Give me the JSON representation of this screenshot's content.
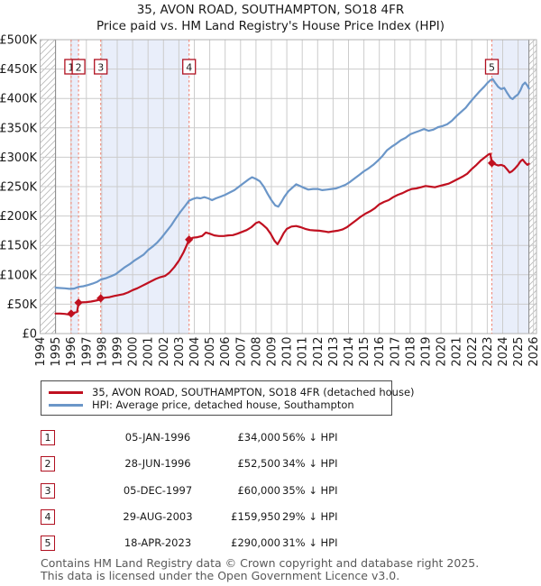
{
  "title": {
    "line1": "35, AVON ROAD, SOUTHAMPTON, SO18 4FR",
    "line2": "Price paid vs. HM Land Registry's House Price Index (HPI)"
  },
  "colors": {
    "price_line": "#c01020",
    "hpi_line": "#6b96c8",
    "sale_dash": "#f08878",
    "marker_box_border": "#b01020",
    "ownership_band": "#e9eefa",
    "grid": "#cccccc",
    "plot_border": "#b0b0b0",
    "data_edge": "#888888",
    "hatch": "#bbbbbb"
  },
  "chart_data": {
    "type": "line",
    "title": "35, AVON ROAD, SOUTHAMPTON, SO18 4FR — Price paid vs. HPI",
    "xlabel": "",
    "ylabel": "",
    "x_ticks": [
      1994,
      1995,
      1996,
      1997,
      1998,
      1999,
      2000,
      2001,
      2002,
      2003,
      2004,
      2005,
      2006,
      2007,
      2008,
      2009,
      2010,
      2011,
      2012,
      2013,
      2014,
      2015,
      2016,
      2017,
      2018,
      2019,
      2020,
      2021,
      2022,
      2023,
      2024,
      2025,
      2026
    ],
    "y_tick_labels": [
      "£0",
      "£50K",
      "£100K",
      "£150K",
      "£200K",
      "£250K",
      "£300K",
      "£350K",
      "£400K",
      "£450K",
      "£500K"
    ],
    "y_tick_values_k": [
      0,
      50,
      100,
      150,
      200,
      250,
      300,
      350,
      400,
      450,
      500
    ],
    "x_range": [
      1993.97,
      2026.2
    ],
    "y_range_k": [
      0,
      500
    ],
    "grid": true,
    "legend_position": "below",
    "no_data_hatch_years": [
      [
        1993.97,
        1995.0
      ],
      [
        2025.7,
        2026.2
      ]
    ],
    "ownership_bands_years": [
      [
        1996.01,
        1996.49
      ],
      [
        1997.93,
        2003.66
      ],
      [
        2023.3,
        2025.7
      ]
    ],
    "series": [
      {
        "name": "HPI: Average price, detached house, Southampton",
        "points": [
          [
            1995.0,
            78
          ],
          [
            1995.3,
            77.5
          ],
          [
            1995.6,
            77
          ],
          [
            1995.9,
            76
          ],
          [
            1996.2,
            76.5
          ],
          [
            1996.5,
            79.5
          ],
          [
            1996.8,
            80.5
          ],
          [
            1997.1,
            82.5
          ],
          [
            1997.4,
            85
          ],
          [
            1997.7,
            88
          ],
          [
            1997.95,
            92
          ],
          [
            1998.3,
            94.5
          ],
          [
            1998.6,
            97.5
          ],
          [
            1998.9,
            101
          ],
          [
            1999.2,
            107
          ],
          [
            1999.5,
            113
          ],
          [
            1999.8,
            118
          ],
          [
            2000.1,
            124
          ],
          [
            2000.4,
            129
          ],
          [
            2000.7,
            134
          ],
          [
            2001.0,
            142
          ],
          [
            2001.3,
            148
          ],
          [
            2001.6,
            155
          ],
          [
            2001.9,
            164
          ],
          [
            2002.2,
            174
          ],
          [
            2002.5,
            184
          ],
          [
            2002.8,
            196
          ],
          [
            2003.1,
            207
          ],
          [
            2003.4,
            217
          ],
          [
            2003.66,
            226
          ],
          [
            2003.9,
            229
          ],
          [
            2004.15,
            231
          ],
          [
            2004.4,
            230
          ],
          [
            2004.65,
            232
          ],
          [
            2004.9,
            230
          ],
          [
            2005.15,
            227
          ],
          [
            2005.4,
            230
          ],
          [
            2005.7,
            233
          ],
          [
            2006.0,
            236
          ],
          [
            2006.3,
            240
          ],
          [
            2006.6,
            244
          ],
          [
            2006.9,
            250
          ],
          [
            2007.2,
            256
          ],
          [
            2007.5,
            262
          ],
          [
            2007.75,
            266
          ],
          [
            2008.0,
            263
          ],
          [
            2008.25,
            259
          ],
          [
            2008.5,
            250
          ],
          [
            2008.75,
            238
          ],
          [
            2009.0,
            227
          ],
          [
            2009.25,
            218
          ],
          [
            2009.45,
            216
          ],
          [
            2009.65,
            224
          ],
          [
            2009.85,
            233
          ],
          [
            2010.1,
            242
          ],
          [
            2010.35,
            248
          ],
          [
            2010.6,
            254
          ],
          [
            2010.85,
            251
          ],
          [
            2011.1,
            248
          ],
          [
            2011.4,
            245
          ],
          [
            2011.7,
            246
          ],
          [
            2012.0,
            246
          ],
          [
            2012.3,
            244
          ],
          [
            2012.6,
            245
          ],
          [
            2012.9,
            246
          ],
          [
            2013.2,
            247
          ],
          [
            2013.5,
            250
          ],
          [
            2013.8,
            253
          ],
          [
            2014.1,
            258
          ],
          [
            2014.4,
            264
          ],
          [
            2014.7,
            270
          ],
          [
            2015.0,
            276
          ],
          [
            2015.3,
            281
          ],
          [
            2015.6,
            287
          ],
          [
            2015.9,
            294
          ],
          [
            2016.2,
            302
          ],
          [
            2016.5,
            312
          ],
          [
            2016.8,
            318
          ],
          [
            2017.1,
            323
          ],
          [
            2017.4,
            329
          ],
          [
            2017.7,
            333
          ],
          [
            2018.0,
            339
          ],
          [
            2018.3,
            342
          ],
          [
            2018.6,
            345
          ],
          [
            2018.9,
            348
          ],
          [
            2019.2,
            345
          ],
          [
            2019.5,
            347
          ],
          [
            2019.8,
            351
          ],
          [
            2020.1,
            353
          ],
          [
            2020.4,
            356
          ],
          [
            2020.7,
            362
          ],
          [
            2021.0,
            370
          ],
          [
            2021.3,
            377
          ],
          [
            2021.6,
            384
          ],
          [
            2021.9,
            394
          ],
          [
            2022.2,
            403
          ],
          [
            2022.5,
            412
          ],
          [
            2022.8,
            420
          ],
          [
            2023.0,
            426
          ],
          [
            2023.2,
            431
          ],
          [
            2023.35,
            433
          ],
          [
            2023.5,
            427
          ],
          [
            2023.7,
            420
          ],
          [
            2023.9,
            416
          ],
          [
            2024.1,
            418
          ],
          [
            2024.3,
            409
          ],
          [
            2024.5,
            401
          ],
          [
            2024.65,
            399
          ],
          [
            2024.8,
            403
          ],
          [
            2025.0,
            407
          ],
          [
            2025.15,
            414
          ],
          [
            2025.3,
            423
          ],
          [
            2025.45,
            427
          ],
          [
            2025.6,
            422
          ],
          [
            2025.7,
            417
          ]
        ]
      },
      {
        "name": "35, AVON ROAD, SOUTHAMPTON, SO18 4FR (detached house)",
        "points": [
          [
            1995.0,
            34
          ],
          [
            1995.3,
            34
          ],
          [
            1995.6,
            33.5
          ],
          [
            1995.85,
            32.5
          ],
          [
            1996.01,
            34
          ],
          [
            1996.2,
            35.5
          ],
          [
            1996.4,
            37
          ],
          [
            1996.49,
            52.5
          ],
          [
            1996.7,
            53
          ],
          [
            1997.0,
            53.5
          ],
          [
            1997.3,
            54.5
          ],
          [
            1997.6,
            56
          ],
          [
            1997.85,
            57.5
          ],
          [
            1997.93,
            60
          ],
          [
            1998.2,
            61
          ],
          [
            1998.5,
            62
          ],
          [
            1998.8,
            64
          ],
          [
            1999.1,
            65.5
          ],
          [
            1999.4,
            67
          ],
          [
            1999.7,
            70
          ],
          [
            2000.0,
            74
          ],
          [
            2000.3,
            77
          ],
          [
            2000.6,
            81
          ],
          [
            2000.9,
            85
          ],
          [
            2001.2,
            89
          ],
          [
            2001.5,
            93
          ],
          [
            2001.8,
            96
          ],
          [
            2002.1,
            98
          ],
          [
            2002.4,
            104
          ],
          [
            2002.7,
            113
          ],
          [
            2003.0,
            124
          ],
          [
            2003.3,
            138
          ],
          [
            2003.5,
            150
          ],
          [
            2003.66,
            160
          ],
          [
            2003.9,
            163
          ],
          [
            2004.2,
            164
          ],
          [
            2004.5,
            166
          ],
          [
            2004.75,
            172
          ],
          [
            2005.0,
            170
          ],
          [
            2005.3,
            167
          ],
          [
            2005.6,
            166
          ],
          [
            2005.9,
            166
          ],
          [
            2006.2,
            167
          ],
          [
            2006.5,
            167.5
          ],
          [
            2006.8,
            170
          ],
          [
            2007.1,
            173
          ],
          [
            2007.4,
            176
          ],
          [
            2007.7,
            181
          ],
          [
            2008.0,
            188
          ],
          [
            2008.2,
            190
          ],
          [
            2008.45,
            185
          ],
          [
            2008.7,
            179
          ],
          [
            2008.95,
            170
          ],
          [
            2009.2,
            158
          ],
          [
            2009.4,
            152
          ],
          [
            2009.6,
            161
          ],
          [
            2009.8,
            171
          ],
          [
            2010.0,
            178
          ],
          [
            2010.3,
            182
          ],
          [
            2010.6,
            183
          ],
          [
            2010.9,
            181
          ],
          [
            2011.2,
            178
          ],
          [
            2011.5,
            176
          ],
          [
            2011.8,
            175.5
          ],
          [
            2012.1,
            175
          ],
          [
            2012.4,
            174
          ],
          [
            2012.7,
            172.5
          ],
          [
            2013.0,
            174
          ],
          [
            2013.3,
            175
          ],
          [
            2013.6,
            177
          ],
          [
            2013.9,
            181
          ],
          [
            2014.2,
            187
          ],
          [
            2014.5,
            193
          ],
          [
            2014.8,
            199
          ],
          [
            2015.1,
            204
          ],
          [
            2015.4,
            208
          ],
          [
            2015.7,
            213
          ],
          [
            2016.0,
            220
          ],
          [
            2016.3,
            224
          ],
          [
            2016.6,
            227
          ],
          [
            2016.9,
            232
          ],
          [
            2017.2,
            236
          ],
          [
            2017.5,
            239
          ],
          [
            2017.8,
            243
          ],
          [
            2018.1,
            246
          ],
          [
            2018.4,
            247
          ],
          [
            2018.7,
            249
          ],
          [
            2019.0,
            251
          ],
          [
            2019.3,
            250
          ],
          [
            2019.6,
            249
          ],
          [
            2019.9,
            251
          ],
          [
            2020.2,
            253
          ],
          [
            2020.5,
            255
          ],
          [
            2020.8,
            259
          ],
          [
            2021.1,
            263
          ],
          [
            2021.4,
            267
          ],
          [
            2021.7,
            272
          ],
          [
            2022.0,
            280
          ],
          [
            2022.3,
            287
          ],
          [
            2022.6,
            295
          ],
          [
            2022.9,
            301
          ],
          [
            2023.1,
            305
          ],
          [
            2023.2,
            306
          ],
          [
            2023.29,
            290
          ],
          [
            2023.5,
            288
          ],
          [
            2023.7,
            286
          ],
          [
            2023.9,
            287
          ],
          [
            2024.1,
            285
          ],
          [
            2024.3,
            279
          ],
          [
            2024.45,
            274
          ],
          [
            2024.6,
            276
          ],
          [
            2024.8,
            281
          ],
          [
            2025.0,
            287
          ],
          [
            2025.15,
            293
          ],
          [
            2025.3,
            296
          ],
          [
            2025.45,
            291
          ],
          [
            2025.6,
            287
          ],
          [
            2025.7,
            289
          ]
        ]
      }
    ],
    "sales": [
      {
        "n": "1",
        "year": 1996.01,
        "price_k": 34
      },
      {
        "n": "2",
        "year": 1996.49,
        "price_k": 52.5
      },
      {
        "n": "3",
        "year": 1997.93,
        "price_k": 60
      },
      {
        "n": "4",
        "year": 2003.66,
        "price_k": 159.95
      },
      {
        "n": "5",
        "year": 2023.3,
        "price_k": 290
      }
    ]
  },
  "legend": {
    "items": [
      {
        "label": "35, AVON ROAD, SOUTHAMPTON, SO18 4FR (detached house)",
        "color": "#c01020"
      },
      {
        "label": "HPI: Average price, detached house, Southampton",
        "color": "#6b96c8"
      }
    ]
  },
  "table": {
    "rows": [
      {
        "num": "1",
        "date": "05-JAN-1996",
        "price": "£34,000",
        "pct": "56% ↓ HPI"
      },
      {
        "num": "2",
        "date": "28-JUN-1996",
        "price": "£52,500",
        "pct": "34% ↓ HPI"
      },
      {
        "num": "3",
        "date": "05-DEC-1997",
        "price": "£60,000",
        "pct": "35% ↓ HPI"
      },
      {
        "num": "4",
        "date": "29-AUG-2003",
        "price": "£159,950",
        "pct": "29% ↓ HPI"
      },
      {
        "num": "5",
        "date": "18-APR-2023",
        "price": "£290,000",
        "pct": "31% ↓ HPI"
      }
    ]
  },
  "footer": {
    "line1": "Contains HM Land Registry data © Crown copyright and database right 2025.",
    "line2": "This data is licensed under the Open Government Licence v3.0."
  }
}
